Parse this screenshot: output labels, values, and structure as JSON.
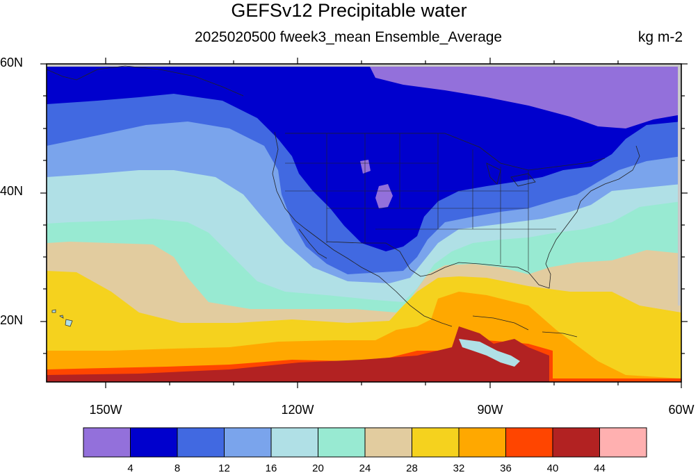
{
  "title": "GEFSv12 Precipitable water",
  "subtitle": "2025020500 fweek3_mean Ensemble_Average",
  "units": "kg m-2",
  "map": {
    "lat_range": [
      10,
      60
    ],
    "lon_range": [
      -160,
      -60
    ],
    "lat_labels": [
      "60N",
      "40N",
      "20N"
    ],
    "lon_labels": [
      "150W",
      "120W",
      "90W",
      "60W"
    ],
    "land_mask_color": "#c8c8c8",
    "border_color": "#222222"
  },
  "colorbar": {
    "colors": [
      "#9370db",
      "#0000cd",
      "#4169e1",
      "#7aa4ec",
      "#b0e0e6",
      "#98ead2",
      "#e2cc9f",
      "#f5d21e",
      "#ffa800",
      "#ff4500",
      "#b22222",
      "#ffb0b0"
    ],
    "labels": [
      "4",
      "8",
      "12",
      "16",
      "20",
      "24",
      "28",
      "32",
      "36",
      "40",
      "44"
    ]
  }
}
